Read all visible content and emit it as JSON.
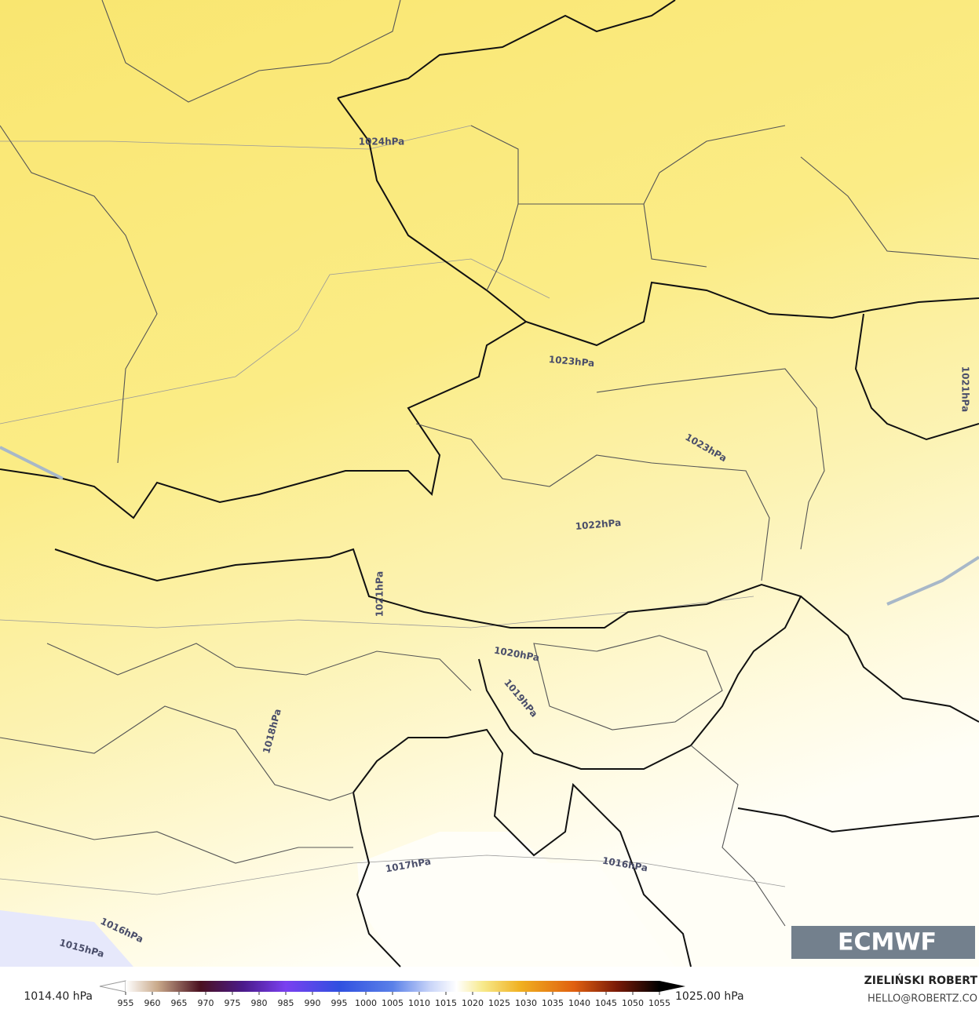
{
  "contour_labels": [
    "1024hPa",
    "1023hPa",
    "1023hPa",
    "1022hPa",
    "1021hPa",
    "1021hPa",
    "1020hPa",
    "1019hPa",
    "1018hPa",
    "1017hPa",
    "1016hPa",
    "1016hPa",
    "1015hPa"
  ],
  "logo": "ECMWF",
  "colorbar": {
    "min_label": "1014.40 hPa",
    "max_label": "1025.00 hPa",
    "ticks": [
      955,
      960,
      965,
      970,
      975,
      980,
      985,
      990,
      995,
      1000,
      1005,
      1010,
      1015,
      1020,
      1025,
      1030,
      1035,
      1040,
      1045,
      1050,
      1055
    ]
  },
  "credit": {
    "name": "ZIELIŃSKI ROBERT",
    "email": "HELLO@ROBERTZ.CO"
  }
}
